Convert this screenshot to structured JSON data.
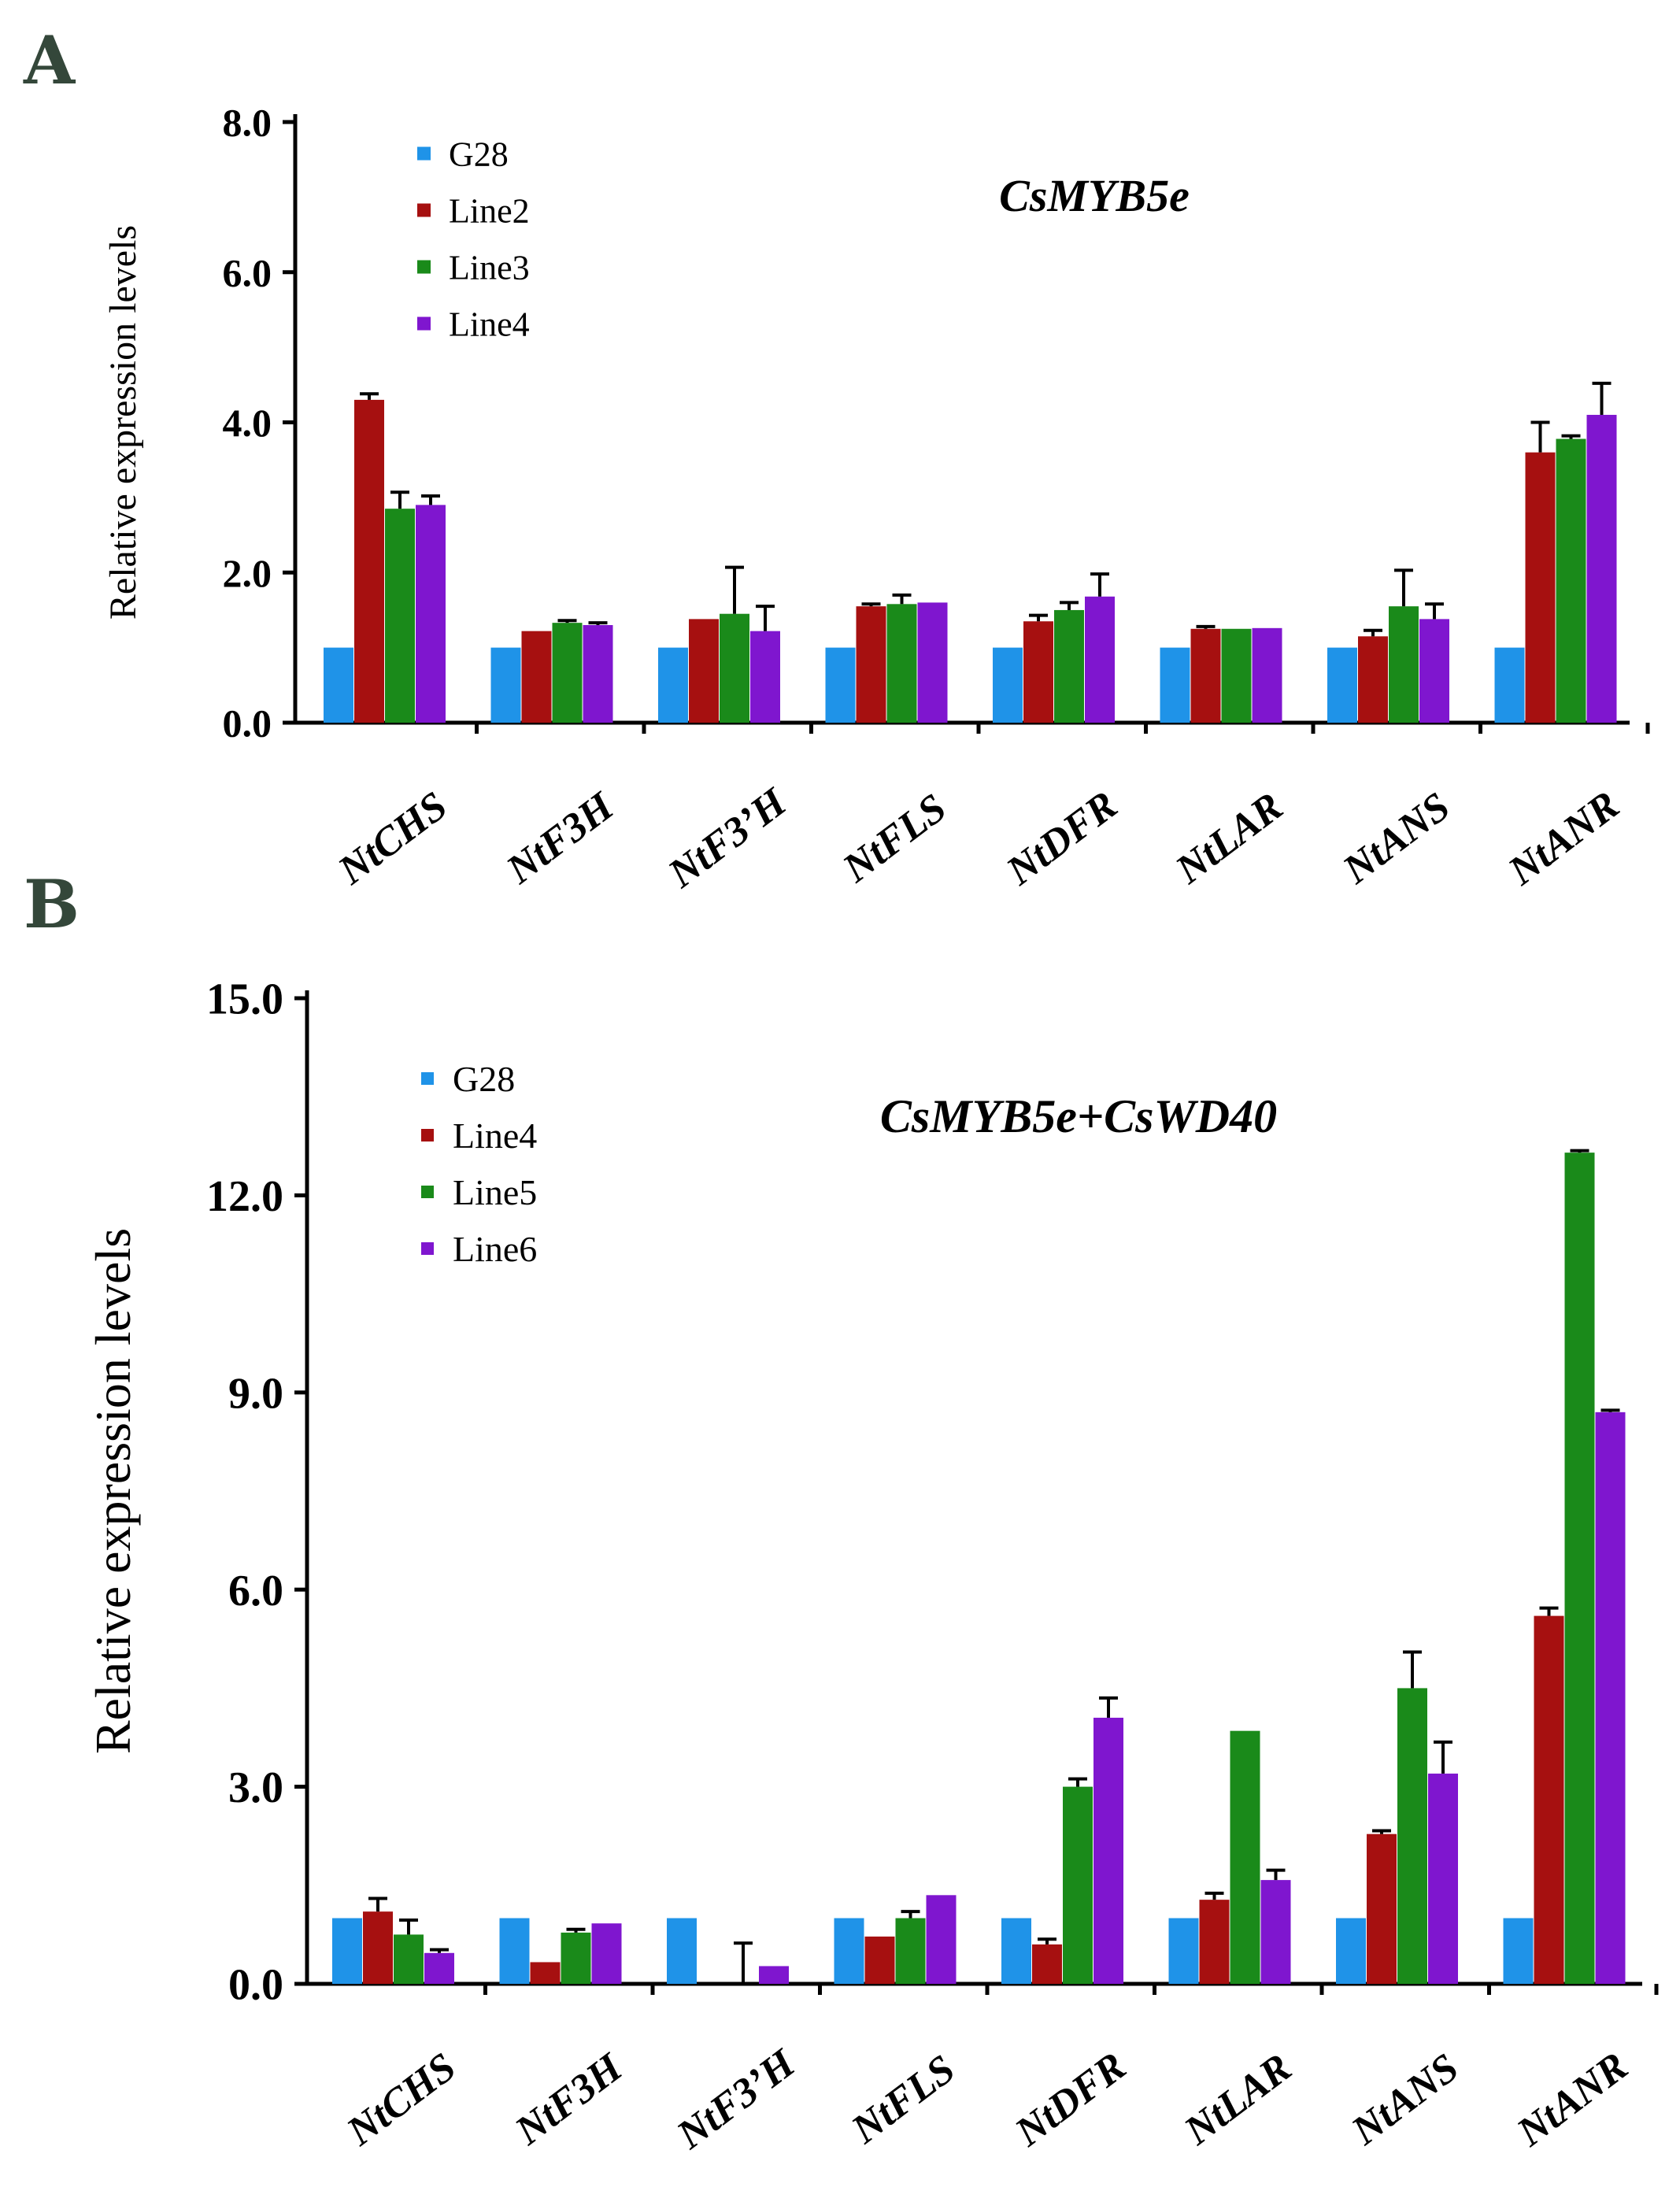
{
  "colors": {
    "G28": "#1f93e8",
    "line_a": "#a61010",
    "line_b": "#1a8a1a",
    "line_c": "#7f16cf",
    "axis": "#000000"
  },
  "chart_data": [
    {
      "panel": "A",
      "type": "bar",
      "construct": "CsMYB5e",
      "ylabel": "Relative expression levels",
      "xlabel": "",
      "ylim": [
        0,
        8
      ],
      "yticks": [
        "0.0",
        "2.0",
        "4.0",
        "6.0",
        "8.0"
      ],
      "ytick_values": [
        0,
        2,
        4,
        6,
        8
      ],
      "categories": [
        "NtCHS",
        "NtF3H",
        "NtF3’H",
        "NtFLS",
        "NtDFR",
        "NtLAR",
        "NtANS",
        "NtANR"
      ],
      "legend_position": "top-left",
      "series": [
        {
          "name": "G28",
          "color_key": "G28",
          "values": [
            1.0,
            1.0,
            1.0,
            1.0,
            1.0,
            1.0,
            1.0,
            1.0
          ],
          "errors": [
            0,
            0,
            0,
            0,
            0,
            0,
            0,
            0
          ]
        },
        {
          "name": "Line2",
          "color_key": "line_a",
          "values": [
            4.3,
            1.22,
            1.38,
            1.55,
            1.35,
            1.25,
            1.15,
            3.6
          ],
          "errors": [
            0.08,
            0,
            0,
            0.03,
            0.08,
            0.03,
            0.08,
            0.4
          ]
        },
        {
          "name": "Line3",
          "color_key": "line_b",
          "values": [
            2.85,
            1.33,
            1.45,
            1.58,
            1.5,
            1.25,
            1.55,
            3.78
          ],
          "errors": [
            0.22,
            0.03,
            0.62,
            0.12,
            0.1,
            0,
            0.48,
            0.04
          ]
        },
        {
          "name": "Line4",
          "color_key": "line_c",
          "values": [
            2.9,
            1.3,
            1.22,
            1.6,
            1.68,
            1.26,
            1.38,
            4.1
          ],
          "errors": [
            0.12,
            0.03,
            0.33,
            0,
            0.3,
            0,
            0.2,
            0.42
          ]
        }
      ]
    },
    {
      "panel": "B",
      "type": "bar",
      "construct": "CsMYB5e+CsWD40",
      "ylabel": "Relative expression levels",
      "xlabel": "",
      "ylim": [
        0,
        15
      ],
      "yticks": [
        "0.0",
        "3.0",
        "6.0",
        "9.0",
        "12.0",
        "15.0"
      ],
      "ytick_values": [
        0,
        3,
        6,
        9,
        12,
        15
      ],
      "categories": [
        "NtCHS",
        "NtF3H",
        "NtF3’H",
        "NtFLS",
        "NtDFR",
        "NtLAR",
        "NtANS",
        "NtANR"
      ],
      "legend_position": "top-left",
      "series": [
        {
          "name": "G28",
          "color_key": "G28",
          "values": [
            1.0,
            1.0,
            1.0,
            1.0,
            1.0,
            1.0,
            1.0,
            1.0
          ],
          "errors": [
            0,
            0,
            0,
            0,
            0,
            0,
            0,
            0
          ]
        },
        {
          "name": "Line4",
          "color_key": "line_a",
          "values": [
            1.1,
            0.33,
            0.0,
            0.72,
            0.6,
            1.28,
            2.28,
            5.6
          ],
          "errors": [
            0.2,
            0,
            0,
            0,
            0.08,
            0.1,
            0.05,
            0.12
          ]
        },
        {
          "name": "Line5",
          "color_key": "line_b",
          "values": [
            0.75,
            0.78,
            0.0,
            1.0,
            3.0,
            3.85,
            4.5,
            12.65
          ],
          "errors": [
            0.22,
            0.05,
            0.62,
            0.1,
            0.12,
            0,
            0.55,
            0.03
          ]
        },
        {
          "name": "Line6",
          "color_key": "line_c",
          "values": [
            0.47,
            0.92,
            0.27,
            1.35,
            4.05,
            1.58,
            3.2,
            8.7
          ],
          "errors": [
            0.05,
            0,
            0,
            0,
            0.3,
            0.15,
            0.48,
            0.03
          ]
        }
      ]
    }
  ]
}
